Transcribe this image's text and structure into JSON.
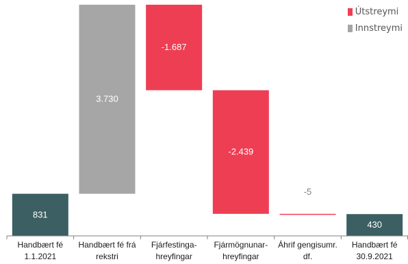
{
  "chart_data": {
    "type": "bar",
    "title": "",
    "xlabel": "",
    "ylabel": "",
    "categories": [
      [
        "Handbært fé",
        "1.1.2021"
      ],
      [
        "Handbært fé frá",
        "rekstri"
      ],
      [
        "Fjárfestinga-",
        "hreyfingar"
      ],
      [
        "Fjármögnunar-",
        "hreyfingar"
      ],
      [
        "Áhrif gengisumr.",
        "df."
      ],
      [
        "Handbært fé",
        "30.9.2021"
      ]
    ],
    "bars": [
      {
        "kind": "total",
        "start": 0,
        "end": 831,
        "label": "831"
      },
      {
        "kind": "inflow",
        "start": 831,
        "end": 4561,
        "label": "3.730"
      },
      {
        "kind": "outflow",
        "start": 4561,
        "end": 2874,
        "label": "-1.687"
      },
      {
        "kind": "outflow",
        "start": 2874,
        "end": 435,
        "label": "-2.439"
      },
      {
        "kind": "outflow",
        "start": 435,
        "end": 430,
        "label": "-5"
      },
      {
        "kind": "total",
        "start": 0,
        "end": 430,
        "label": "430"
      }
    ],
    "ylim": [
      0,
      4600
    ],
    "grid": false,
    "legend_position": "top-right",
    "legend": [
      {
        "key": "outflow",
        "label": "Útstreymi"
      },
      {
        "key": "inflow",
        "label": "Innstreymi"
      }
    ],
    "colors": {
      "total": "#3b5f63",
      "inflow": "#a6a6a6",
      "outflow": "#ee3e54",
      "axis": "#7f7f7f",
      "bar_label": "#ffffff",
      "small_label": "#7f7f7f",
      "category_text": "#1a1a1a"
    }
  }
}
